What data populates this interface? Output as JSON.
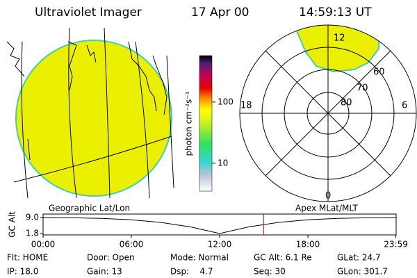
{
  "header": {
    "title": "Ultraviolet Imager",
    "date": "17 Apr 00",
    "time": "14:59:13 UT"
  },
  "colorbar": {
    "label": "photon cm⁻²s⁻¹",
    "range": [
      3.5,
      575
    ],
    "ticks": [
      10,
      100
    ]
  },
  "polar": {
    "mlt_labels": [
      "12",
      "18",
      "6",
      "0"
    ],
    "ring_labels": [
      "60",
      "70",
      "80"
    ]
  },
  "timeline": {
    "left_title": "Geographic Lat/Lon",
    "right_title": "Apex MLat/MLT",
    "ylabel": "GC Alt",
    "ylim": [
      1.8,
      9.0
    ],
    "yticks": [
      {
        "value": 9,
        "label": "9.0"
      },
      {
        "value": 1.8,
        "label": "1.8"
      }
    ],
    "xlim": [
      0,
      24
    ],
    "xticks": [
      {
        "value": 0,
        "label": "00:00"
      },
      {
        "value": 6,
        "label": "06:00"
      },
      {
        "value": 12,
        "label": "12:00"
      },
      {
        "value": 18,
        "label": "18:00"
      },
      {
        "value": 23.98,
        "label": "23:59"
      }
    ],
    "x": [
      0,
      2,
      4,
      6,
      8,
      10,
      12,
      14,
      16,
      18,
      20,
      22,
      24
    ],
    "values": [
      9.0,
      8.9,
      8.6,
      8.0,
      6.8,
      4.8,
      1.8,
      4.8,
      6.8,
      8.0,
      8.6,
      8.9,
      9.0
    ],
    "marker_x": 14.99,
    "marker_color": "#e00000"
  },
  "footer": {
    "rows": [
      [
        "Flt: HOME",
        "Door: Open",
        "Mode: Normal",
        "GC Alt: 6.1 Re",
        "GLat: 24.7"
      ],
      [
        "IP: 18.0",
        "Gain: 13",
        "Dsp:    4.7",
        "Seq: 30",
        "GLon: 301.7"
      ]
    ]
  }
}
